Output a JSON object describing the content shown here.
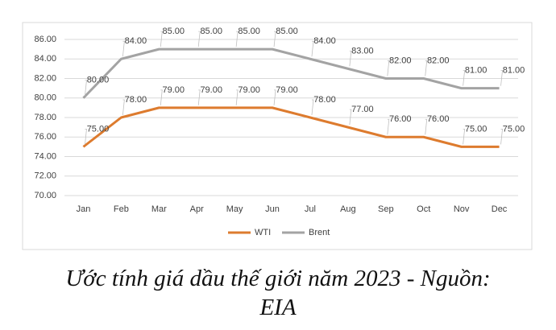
{
  "chart_data": {
    "type": "line",
    "caption": "Ước tính giá dầu thế giới năm 2023 - Nguồn: EIA",
    "categories": [
      "Jan",
      "Feb",
      "Mar",
      "Apr",
      "May",
      "Jun",
      "Jul",
      "Aug",
      "Sep",
      "Oct",
      "Nov",
      "Dec"
    ],
    "series": [
      {
        "name": "WTI",
        "color": "#dd7b2e",
        "values": [
          75,
          78,
          79,
          79,
          79,
          79,
          78,
          77,
          76,
          76,
          75,
          75
        ],
        "value_labels": [
          "75.00",
          "78.00",
          "79.00",
          "79.00",
          "79.00",
          "79.00",
          "78.00",
          "77.00",
          "76.00",
          "76.00",
          "75.00",
          "75.00"
        ]
      },
      {
        "name": "Brent",
        "color": "#a3a3a3",
        "values": [
          80,
          84,
          85,
          85,
          85,
          85,
          84,
          83,
          82,
          82,
          81,
          81
        ],
        "value_labels": [
          "80.00",
          "84.00",
          "85.00",
          "85.00",
          "85.00",
          "85.00",
          "84.00",
          "83.00",
          "82.00",
          "82.00",
          "81.00",
          "81.00"
        ]
      }
    ],
    "ylim": [
      70,
      86
    ],
    "yticks": [
      {
        "value": 70,
        "label": "70.00"
      },
      {
        "value": 72,
        "label": "72.00"
      },
      {
        "value": 74,
        "label": "74.00"
      },
      {
        "value": 76,
        "label": "76.00"
      },
      {
        "value": 78,
        "label": "78.00"
      },
      {
        "value": 80,
        "label": "80.00"
      },
      {
        "value": 82,
        "label": "82.00"
      },
      {
        "value": 84,
        "label": "84.00"
      },
      {
        "value": 86,
        "label": "86.00"
      }
    ],
    "grid": true,
    "legend": "bottom"
  }
}
